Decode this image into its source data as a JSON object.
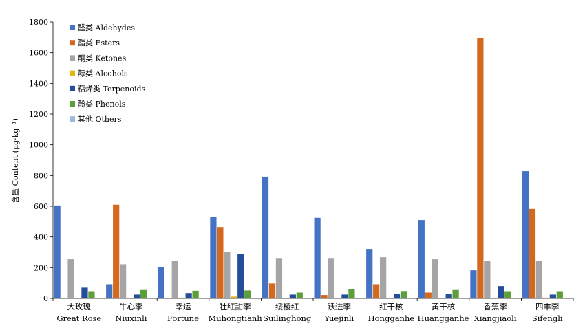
{
  "chart_data": {
    "type": "bar",
    "ylabel": "含量 Content (μg·kg⁻¹)",
    "ylim": [
      0,
      1800
    ],
    "yticks": [
      0,
      200,
      400,
      600,
      800,
      1000,
      1200,
      1400,
      1600,
      1800
    ],
    "grid": false,
    "legend_position": "top-left",
    "categories": [
      {
        "zh": "大玫瑰",
        "en": "Great Rose"
      },
      {
        "zh": "牛心李",
        "en": "Niuxinli"
      },
      {
        "zh": "幸运",
        "en": "Fortune"
      },
      {
        "zh": "牡红甜李",
        "en": "Muhongtianli"
      },
      {
        "zh": "绥棱红",
        "en": "Suilinghong"
      },
      {
        "zh": "跃进李",
        "en": "Yuejinli"
      },
      {
        "zh": "红干核",
        "en": "Hongganhe"
      },
      {
        "zh": "黄干核",
        "en": "Huangganhe"
      },
      {
        "zh": "香蕉李",
        "en": "Xiangjiaoli"
      },
      {
        "zh": "四丰李",
        "en": "Sifengli"
      }
    ],
    "series": [
      {
        "name": "醛类 Aldehydes",
        "color": "#4472C4",
        "values": [
          605,
          92,
          205,
          530,
          793,
          525,
          322,
          510,
          183,
          828
        ]
      },
      {
        "name": "酯类 Esters",
        "color": "#D4691E",
        "values": [
          0,
          610,
          0,
          465,
          97,
          22,
          92,
          38,
          1697,
          583
        ]
      },
      {
        "name": "酮类 Ketones",
        "color": "#A5A5A5",
        "values": [
          255,
          222,
          245,
          300,
          263,
          263,
          268,
          255,
          245,
          245
        ]
      },
      {
        "name": "醇类 Alcohols",
        "color": "#E3B70F",
        "values": [
          0,
          0,
          5,
          12,
          3,
          3,
          3,
          3,
          3,
          5
        ]
      },
      {
        "name": "萜烯类 Terpenoids",
        "color": "#264D9B",
        "values": [
          70,
          25,
          35,
          290,
          25,
          25,
          30,
          30,
          80,
          25
        ]
      },
      {
        "name": "酚类 Phenols",
        "color": "#5C9E3A",
        "values": [
          47,
          55,
          50,
          52,
          38,
          60,
          48,
          55,
          47,
          47
        ]
      },
      {
        "name": "其他 Others",
        "color": "#9DB8E0",
        "values": [
          0,
          0,
          0,
          0,
          0,
          0,
          0,
          0,
          0,
          0
        ]
      }
    ]
  }
}
